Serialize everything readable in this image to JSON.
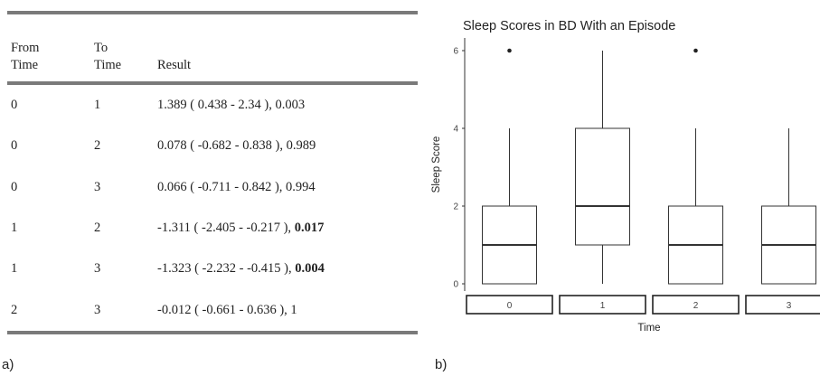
{
  "table": {
    "headers": [
      "From Time",
      "To Time",
      "Result"
    ],
    "header_lines": [
      [
        "From",
        "Time"
      ],
      [
        "To",
        "Time"
      ],
      [
        "Result"
      ]
    ],
    "rows": [
      {
        "from": "0",
        "to": "1",
        "result": "1.389 ( 0.438 - 2.34 ), 0.003",
        "p": ""
      },
      {
        "from": "0",
        "to": "2",
        "result": "0.078 ( -0.682 - 0.838 ), 0.989",
        "p": ""
      },
      {
        "from": "0",
        "to": "3",
        "result": "0.066 ( -0.711 - 0.842 ), 0.994",
        "p": ""
      },
      {
        "from": "1",
        "to": "2",
        "result": "-1.311 ( -2.405 - -0.217 ), ",
        "p": "0.017"
      },
      {
        "from": "1",
        "to": "3",
        "result": "-1.323 ( -2.232 - -0.415 ), ",
        "p": "0.004"
      },
      {
        "from": "2",
        "to": "3",
        "result": "-0.012 ( -0.661 - 0.636 ), 1",
        "p": ""
      }
    ]
  },
  "panel_labels": {
    "a": "a)",
    "b": "b)"
  },
  "chart_data": {
    "type": "box",
    "title": "Sleep Scores in BD With an Episode",
    "xlabel": "Time",
    "ylabel": "Sleep Score",
    "categories": [
      "0",
      "1",
      "2",
      "3"
    ],
    "ylim": [
      -0.2,
      6.2
    ],
    "yticks": [
      0,
      2,
      4,
      6
    ],
    "boxes": [
      {
        "category": "0",
        "min": 0,
        "q1": 0,
        "median": 1,
        "q3": 2,
        "max": 4,
        "outliers": [
          6
        ]
      },
      {
        "category": "1",
        "min": 0,
        "q1": 1,
        "median": 2,
        "q3": 4,
        "max": 6,
        "outliers": []
      },
      {
        "category": "2",
        "min": 0,
        "q1": 0,
        "median": 1,
        "q3": 2,
        "max": 4,
        "outliers": [
          6
        ]
      },
      {
        "category": "3",
        "min": 0,
        "q1": 0,
        "median": 1,
        "q3": 2,
        "max": 4,
        "outliers": []
      }
    ],
    "grid": false,
    "colors": {
      "box_fill": "#ffffff",
      "line": "#333333",
      "median": "#333333"
    }
  }
}
